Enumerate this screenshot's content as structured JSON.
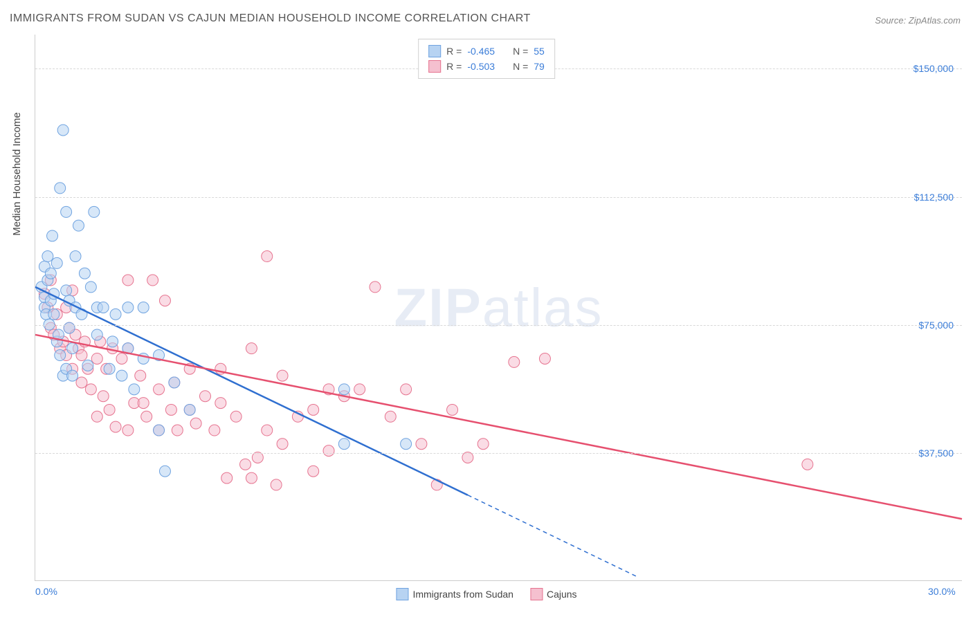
{
  "title": "IMMIGRANTS FROM SUDAN VS CAJUN MEDIAN HOUSEHOLD INCOME CORRELATION CHART",
  "source_label": "Source:",
  "source_name": "ZipAtlas.com",
  "watermark_bold": "ZIP",
  "watermark_light": "atlas",
  "ylabel": "Median Household Income",
  "chart": {
    "type": "scatter",
    "xlim": [
      0,
      30
    ],
    "ylim": [
      0,
      160000
    ],
    "x_ticks": [
      {
        "value": 0,
        "label": "0.0%"
      },
      {
        "value": 30,
        "label": "30.0%"
      }
    ],
    "y_gridlines": [
      37500,
      75000,
      112500,
      150000
    ],
    "y_tick_labels": [
      "$37,500",
      "$75,000",
      "$112,500",
      "$150,000"
    ],
    "background_color": "#ffffff",
    "grid_color": "#d8d8d8",
    "axis_color": "#cccccc",
    "tick_label_color": "#3b7dd8",
    "series": [
      {
        "name": "Immigrants from Sudan",
        "short": "blue",
        "fill": "#b7d3f2",
        "stroke": "#6fa3e0",
        "line_color": "#2f6fd0",
        "marker_radius": 8,
        "fill_opacity": 0.55,
        "R": "-0.465",
        "N": "55",
        "trend": {
          "x1": 0,
          "y1": 86000,
          "x2": 14,
          "y2": 25000,
          "dash_after_x": 14,
          "dash_to_x": 19.5,
          "dash_to_y": 1000
        },
        "points": [
          [
            0.2,
            86000
          ],
          [
            0.3,
            80000
          ],
          [
            0.3,
            83000
          ],
          [
            0.3,
            92000
          ],
          [
            0.35,
            78000
          ],
          [
            0.4,
            95000
          ],
          [
            0.4,
            88000
          ],
          [
            0.45,
            75000
          ],
          [
            0.5,
            90000
          ],
          [
            0.5,
            82000
          ],
          [
            0.55,
            101000
          ],
          [
            0.6,
            78000
          ],
          [
            0.6,
            84000
          ],
          [
            0.7,
            93000
          ],
          [
            0.7,
            70000
          ],
          [
            0.75,
            72000
          ],
          [
            0.8,
            66000
          ],
          [
            0.8,
            115000
          ],
          [
            0.9,
            60000
          ],
          [
            0.9,
            132000
          ],
          [
            1.0,
            85000
          ],
          [
            1.0,
            62000
          ],
          [
            1.0,
            108000
          ],
          [
            1.1,
            82000
          ],
          [
            1.1,
            74000
          ],
          [
            1.2,
            60000
          ],
          [
            1.2,
            68000
          ],
          [
            1.3,
            80000
          ],
          [
            1.3,
            95000
          ],
          [
            1.4,
            104000
          ],
          [
            1.5,
            78000
          ],
          [
            1.6,
            90000
          ],
          [
            1.7,
            63000
          ],
          [
            1.8,
            86000
          ],
          [
            1.9,
            108000
          ],
          [
            2.0,
            72000
          ],
          [
            2.0,
            80000
          ],
          [
            2.2,
            80000
          ],
          [
            2.4,
            62000
          ],
          [
            2.5,
            70000
          ],
          [
            2.6,
            78000
          ],
          [
            2.8,
            60000
          ],
          [
            3.0,
            68000
          ],
          [
            3.0,
            80000
          ],
          [
            3.2,
            56000
          ],
          [
            3.5,
            80000
          ],
          [
            3.5,
            65000
          ],
          [
            4.0,
            44000
          ],
          [
            4.0,
            66000
          ],
          [
            4.2,
            32000
          ],
          [
            4.5,
            58000
          ],
          [
            5.0,
            50000
          ],
          [
            10.0,
            56000
          ],
          [
            10.0,
            40000
          ],
          [
            12.0,
            40000
          ]
        ]
      },
      {
        "name": "Cajuns",
        "short": "pink",
        "fill": "#f5c0cf",
        "stroke": "#e6738f",
        "line_color": "#e6506f",
        "marker_radius": 8,
        "fill_opacity": 0.55,
        "R": "-0.503",
        "N": "79",
        "trend": {
          "x1": 0,
          "y1": 72000,
          "x2": 30,
          "y2": 18000
        },
        "points": [
          [
            0.3,
            84000
          ],
          [
            0.4,
            80000
          ],
          [
            0.5,
            74000
          ],
          [
            0.5,
            88000
          ],
          [
            0.6,
            72000
          ],
          [
            0.7,
            78000
          ],
          [
            0.8,
            68000
          ],
          [
            0.9,
            70000
          ],
          [
            1.0,
            66000
          ],
          [
            1.0,
            80000
          ],
          [
            1.1,
            74000
          ],
          [
            1.2,
            62000
          ],
          [
            1.3,
            72000
          ],
          [
            1.4,
            68000
          ],
          [
            1.5,
            66000
          ],
          [
            1.5,
            58000
          ],
          [
            1.6,
            70000
          ],
          [
            1.7,
            62000
          ],
          [
            1.8,
            56000
          ],
          [
            2.0,
            65000
          ],
          [
            2.0,
            48000
          ],
          [
            2.1,
            70000
          ],
          [
            2.2,
            54000
          ],
          [
            2.3,
            62000
          ],
          [
            2.4,
            50000
          ],
          [
            2.5,
            68000
          ],
          [
            2.6,
            45000
          ],
          [
            2.8,
            65000
          ],
          [
            3.0,
            68000
          ],
          [
            3.0,
            44000
          ],
          [
            3.2,
            52000
          ],
          [
            3.4,
            60000
          ],
          [
            3.5,
            52000
          ],
          [
            3.6,
            48000
          ],
          [
            3.8,
            88000
          ],
          [
            4.0,
            56000
          ],
          [
            4.0,
            44000
          ],
          [
            4.2,
            82000
          ],
          [
            4.4,
            50000
          ],
          [
            4.5,
            58000
          ],
          [
            4.6,
            44000
          ],
          [
            5.0,
            62000
          ],
          [
            5.0,
            50000
          ],
          [
            5.2,
            46000
          ],
          [
            5.5,
            54000
          ],
          [
            5.8,
            44000
          ],
          [
            6.0,
            62000
          ],
          [
            6.0,
            52000
          ],
          [
            6.2,
            30000
          ],
          [
            6.5,
            48000
          ],
          [
            6.8,
            34000
          ],
          [
            7.0,
            68000
          ],
          [
            7.0,
            30000
          ],
          [
            7.2,
            36000
          ],
          [
            7.5,
            44000
          ],
          [
            7.8,
            28000
          ],
          [
            8.0,
            60000
          ],
          [
            8.0,
            40000
          ],
          [
            8.5,
            48000
          ],
          [
            9.0,
            32000
          ],
          [
            9.0,
            50000
          ],
          [
            9.5,
            56000
          ],
          [
            9.5,
            38000
          ],
          [
            10.0,
            54000
          ],
          [
            10.5,
            56000
          ],
          [
            11.0,
            86000
          ],
          [
            11.5,
            48000
          ],
          [
            12.0,
            56000
          ],
          [
            12.5,
            40000
          ],
          [
            13.0,
            28000
          ],
          [
            13.5,
            50000
          ],
          [
            14.0,
            36000
          ],
          [
            14.5,
            40000
          ],
          [
            15.5,
            64000
          ],
          [
            16.5,
            65000
          ],
          [
            25.0,
            34000
          ],
          [
            1.2,
            85000
          ],
          [
            3.0,
            88000
          ],
          [
            7.5,
            95000
          ]
        ]
      }
    ],
    "legend_top": {
      "R_label": "R =",
      "N_label": "N =",
      "value_color": "#3b7dd8"
    },
    "legend_bottom": [
      {
        "label": "Immigrants from Sudan",
        "fill": "#b7d3f2",
        "stroke": "#6fa3e0"
      },
      {
        "label": "Cajuns",
        "fill": "#f5c0cf",
        "stroke": "#e6738f"
      }
    ]
  }
}
